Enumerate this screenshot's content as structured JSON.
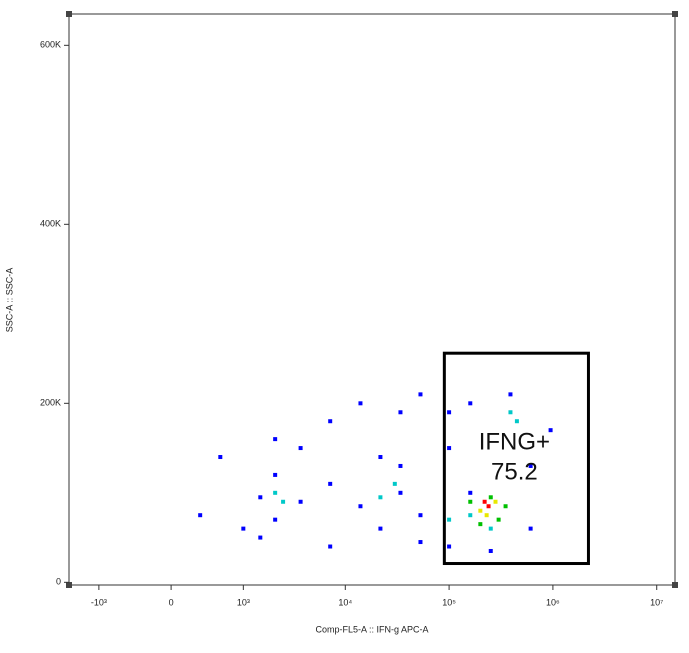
{
  "chart_data": {
    "type": "scatter",
    "x_label": "Comp-FL5-A :: IFN-g APC-A",
    "y_label": "SSC-A :: SSC-A",
    "xscale": "asinh",
    "xlim": [
      -2000,
      15000000
    ],
    "ylim": [
      -3000,
      635000
    ],
    "xticks": [
      {
        "value": -1000,
        "label": "-10³"
      },
      0,
      {
        "value": 1000,
        "label": "10³"
      },
      {
        "value": 10000,
        "label": "10⁴"
      },
      {
        "value": 100000,
        "label": "10⁵"
      },
      {
        "value": 1000000,
        "label": "10⁶"
      },
      {
        "value": 10000000,
        "label": "10⁷"
      }
    ],
    "yticks": [
      0,
      {
        "value": 200000,
        "label": "200K"
      },
      {
        "value": 400000,
        "label": "400K"
      },
      {
        "value": 600000,
        "label": "600K"
      }
    ],
    "series": [
      {
        "color": "#0000ff",
        "x": [
          290,
          555,
          1000,
          1490,
          2090,
          2090,
          3700,
          3700,
          7150,
          7150,
          14000,
          14000,
          21800,
          21800,
          34000,
          34000,
          53000,
          53000,
          100000,
          100000,
          160000,
          252000,
          390000,
          610000,
          950000,
          1490,
          2090,
          7150,
          34000,
          610000,
          160000,
          53000,
          100000
        ],
        "values": [
          75000,
          140000,
          60000,
          95000,
          120000,
          70000,
          150000,
          90000,
          180000,
          110000,
          85000,
          200000,
          140000,
          60000,
          190000,
          100000,
          45000,
          210000,
          150000,
          40000,
          200000,
          35000,
          210000,
          60000,
          170000,
          50000,
          160000,
          40000,
          130000,
          130000,
          100000,
          75000,
          190000
        ]
      },
      {
        "color": "#00c8c8",
        "x": [
          2090,
          2500,
          21800,
          30000,
          160000,
          252000,
          390000,
          450000,
          100000
        ],
        "values": [
          100000,
          90000,
          95000,
          110000,
          75000,
          60000,
          190000,
          180000,
          70000
        ]
      },
      {
        "color": "#00c000",
        "x": [
          160000,
          200000,
          300000,
          350000,
          252000
        ],
        "values": [
          90000,
          65000,
          70000,
          85000,
          95000
        ]
      },
      {
        "color": "#e8e800",
        "x": [
          200000,
          280000,
          230000
        ],
        "values": [
          80000,
          90000,
          75000
        ]
      },
      {
        "color": "#ff0000",
        "x": [
          240000,
          220000
        ],
        "values": [
          85000,
          90000
        ]
      }
    ],
    "gate": {
      "name": "IFNG+",
      "value": 75.2,
      "x": [
        90000,
        2200000
      ],
      "y": [
        21000,
        256000
      ]
    }
  }
}
